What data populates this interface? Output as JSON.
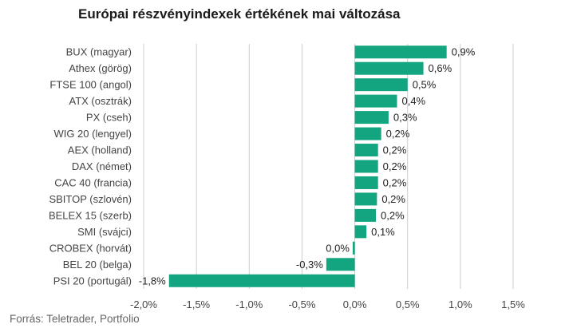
{
  "title": "Európai részvényindexek értékének mai változása",
  "source": "Forrás: Teletrader, Portfolio",
  "colors": {
    "bar": "#12a57f",
    "grid": "#cccccc",
    "text": "#444444"
  },
  "chart_data": {
    "type": "bar",
    "orientation": "horizontal",
    "title": "Európai részvényindexek értékének mai változása",
    "categories": [
      "BUX (magyar)",
      "Athex (görög)",
      "FTSE 100 (angol)",
      "ATX (osztrák)",
      "PX (cseh)",
      "WIG 20 (lengyel)",
      "AEX (holland)",
      "DAX (német)",
      "CAC 40 (francia)",
      "SBITOP (szlovén)",
      "BELEX 15 (szerb)",
      "SMI (svájci)",
      "CROBEX (horvát)",
      "BEL 20 (belga)",
      "PSI 20 (portugál)"
    ],
    "values": [
      0.87,
      0.65,
      0.5,
      0.4,
      0.32,
      0.25,
      0.22,
      0.22,
      0.22,
      0.21,
      0.2,
      0.11,
      -0.02,
      -0.27,
      -1.76
    ],
    "data_labels": [
      "0,9%",
      "0,6%",
      "0,5%",
      "0,4%",
      "0,3%",
      "0,2%",
      "0,2%",
      "0,2%",
      "0,2%",
      "0,2%",
      "0,2%",
      "0,1%",
      "0,0%",
      "-0,3%",
      "-1,8%"
    ],
    "xlim": [
      -2.0,
      1.5
    ],
    "xticks": [
      -2.0,
      -1.5,
      -1.0,
      -0.5,
      0.0,
      0.5,
      1.0,
      1.5
    ],
    "xtick_labels": [
      "-2,0%",
      "-1,5%",
      "-1,0%",
      "-0,5%",
      "0,0%",
      "0,5%",
      "1,0%",
      "1,5%"
    ],
    "grid": true,
    "legend": "none"
  }
}
